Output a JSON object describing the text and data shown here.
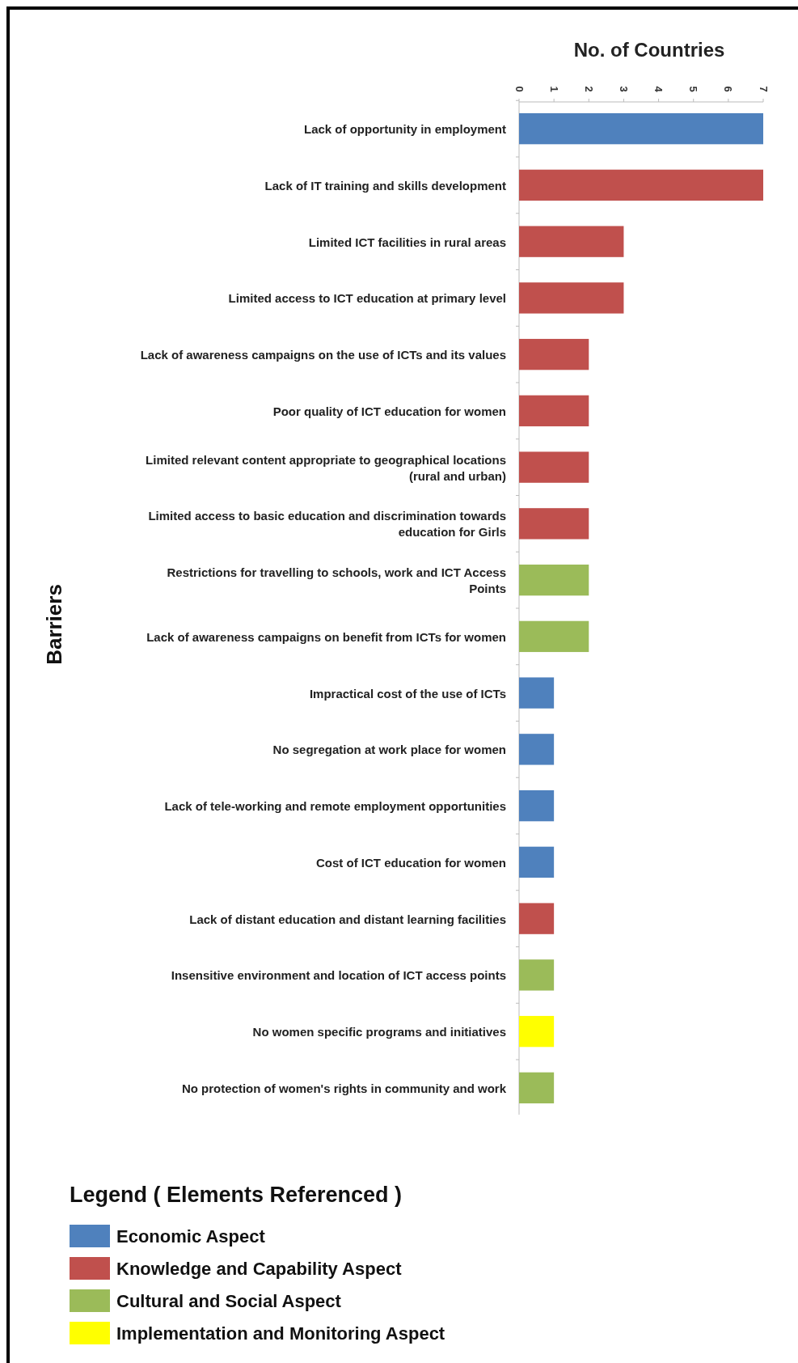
{
  "chart_data": {
    "type": "bar",
    "orientation": "horizontal",
    "stacked": true,
    "xlabel": "No. of Countries",
    "ylabel": "Barriers",
    "legend_title": "Legend ( Elements Referenced )",
    "legend": "bottom left",
    "xlim": [
      0,
      7
    ],
    "xticks": [
      0,
      1,
      2,
      3,
      4,
      5,
      6,
      7
    ],
    "categories": [
      "Lack of opportunity in employment",
      "Lack of IT training and skills development",
      "Limited ICT facilities in rural areas",
      "Limited access to ICT education at primary level",
      "Lack of awareness campaigns on the use of ICTs and its values",
      "Poor quality of ICT education for women",
      "Limited relevant content appropriate to geographical locations (rural and urban)",
      "Limited access to basic education and discrimination towards education for Girls",
      "Restrictions for travelling to schools, work and ICT Access Points",
      "Lack of awareness campaigns on benefit from ICTs for women",
      "Impractical cost of the use of ICTs",
      "No segregation at work place for women",
      "Lack of tele-working and remote employment opportunities",
      "Cost of ICT education for women",
      "Lack of distant education and distant learning facilities",
      "Insensitive environment and location of ICT access points",
      "No women specific programs and initiatives",
      "No protection of women's rights in community and work"
    ],
    "series": [
      {
        "name": "Economic Aspect",
        "color": "#4f81bd",
        "values": [
          7,
          null,
          null,
          null,
          null,
          null,
          null,
          null,
          null,
          null,
          1,
          1,
          1,
          1,
          null,
          null,
          null,
          null
        ]
      },
      {
        "name": "Knowledge and Capability Aspect",
        "color": "#c0504d",
        "values": [
          null,
          7,
          3,
          3,
          2,
          2,
          2,
          2,
          null,
          null,
          null,
          null,
          null,
          null,
          1,
          null,
          null,
          null
        ]
      },
      {
        "name": "Cultural and Social Aspect",
        "color": "#9bbb59",
        "values": [
          null,
          null,
          null,
          null,
          null,
          null,
          null,
          null,
          2,
          2,
          null,
          null,
          null,
          null,
          null,
          1,
          null,
          1
        ]
      },
      {
        "name": "Implementation and Monitoring Aspect",
        "color": "#ffff00",
        "values": [
          null,
          null,
          null,
          null,
          null,
          null,
          null,
          null,
          null,
          null,
          null,
          null,
          null,
          null,
          null,
          null,
          1,
          null
        ]
      }
    ]
  }
}
